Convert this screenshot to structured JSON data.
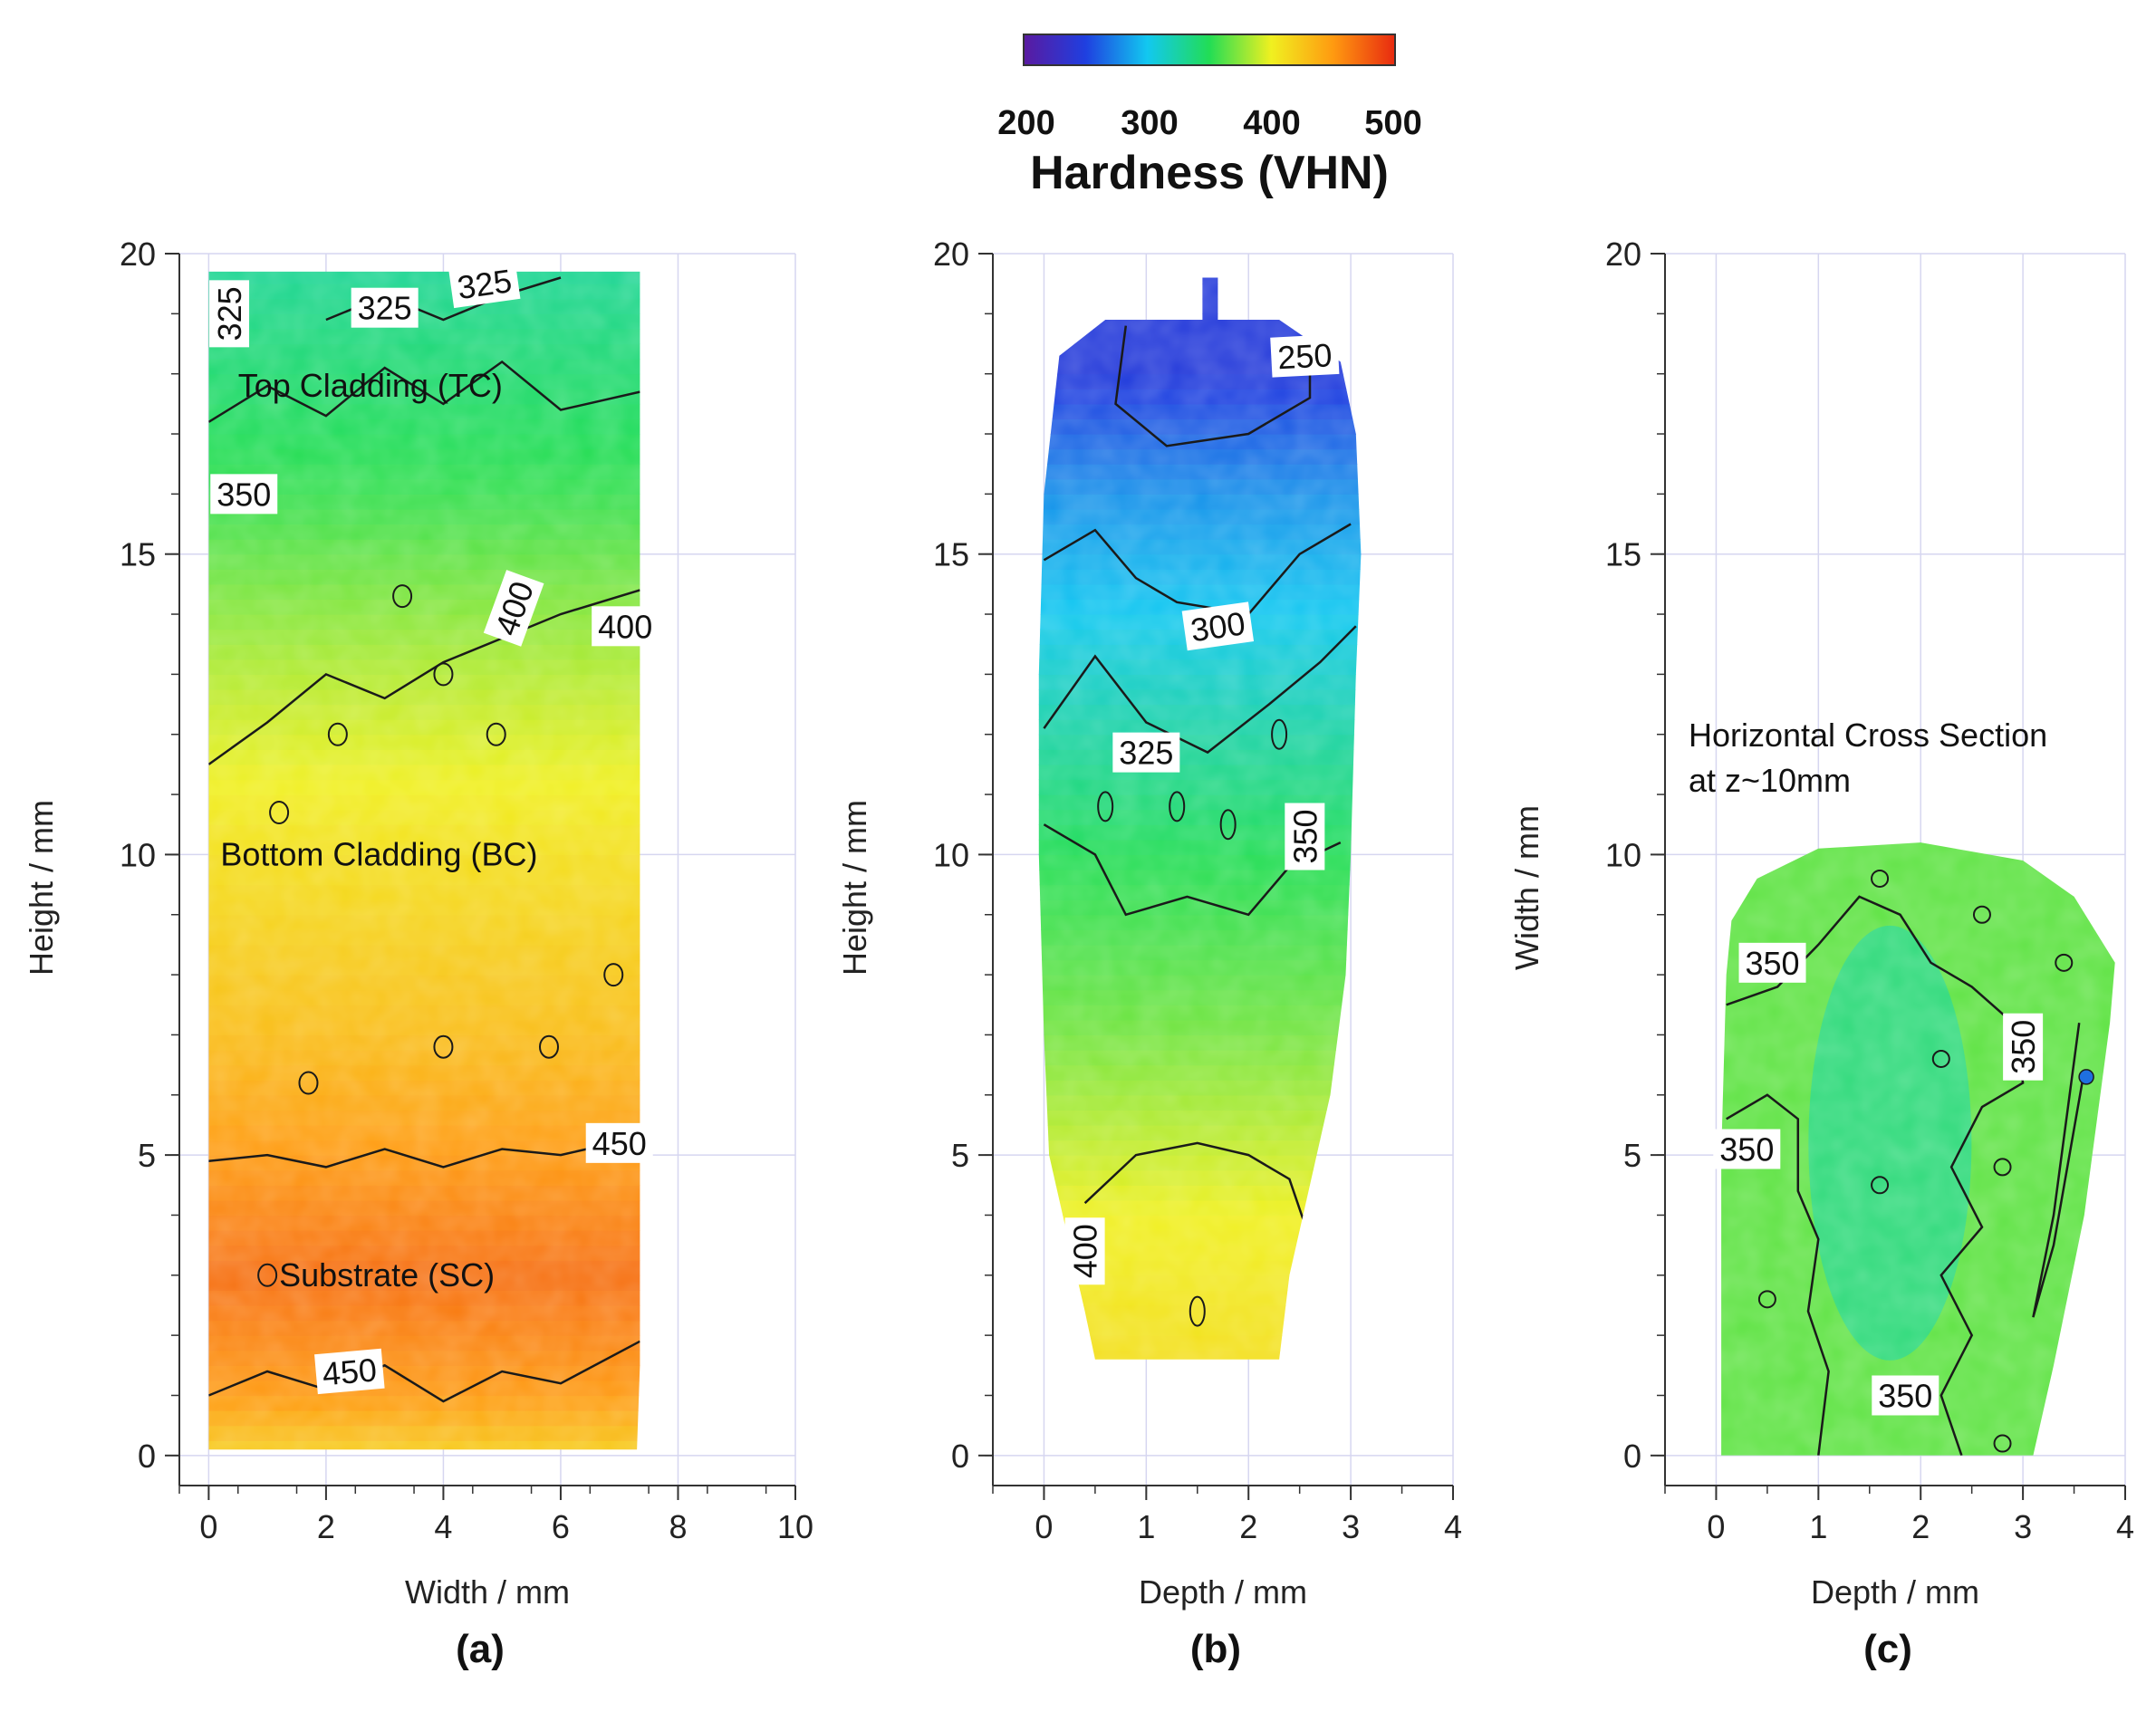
{
  "colorbar": {
    "title": "Hardness (VHN)",
    "ticks": [
      "200",
      "300",
      "400",
      "500"
    ],
    "range": [
      200,
      500
    ],
    "colors": [
      "#5a1aa0",
      "#1f3fe0",
      "#12c8f0",
      "#22dd55",
      "#f0f020",
      "#ff9a10",
      "#e82a10"
    ]
  },
  "chart_data": [
    {
      "type": "heatmap",
      "panel": "(a)",
      "xlabel": "Width / mm",
      "ylabel": "Height / mm",
      "xlim": [
        -0.5,
        10
      ],
      "ylim": [
        -0.5,
        20
      ],
      "xticks": [
        "0",
        "2",
        "4",
        "6",
        "8",
        "10"
      ],
      "yticks": [
        "0",
        "5",
        "10",
        "15",
        "20"
      ],
      "grid": true,
      "region_labels": [
        "Top Cladding (TC)",
        "Bottom Cladding (BC)",
        "Substrate (SC)"
      ],
      "contour_labels": [
        "325",
        "325",
        "325",
        "350",
        "400",
        "400",
        "450",
        "450"
      ],
      "hardness_profile": [
        {
          "height": 0,
          "vhn": 420
        },
        {
          "height": 1,
          "vhn": 450
        },
        {
          "height": 3,
          "vhn": 470
        },
        {
          "height": 5,
          "vhn": 450
        },
        {
          "height": 7,
          "vhn": 430
        },
        {
          "height": 10,
          "vhn": 410
        },
        {
          "height": 13,
          "vhn": 385
        },
        {
          "height": 16,
          "vhn": 355
        },
        {
          "height": 19.7,
          "vhn": 330
        }
      ]
    },
    {
      "type": "heatmap",
      "panel": "(b)",
      "xlabel": "Depth / mm",
      "ylabel": "Height / mm",
      "xlim": [
        -0.5,
        4
      ],
      "ylim": [
        -0.5,
        20
      ],
      "xticks": [
        "0",
        "1",
        "2",
        "3",
        "4"
      ],
      "yticks": [
        "0",
        "5",
        "10",
        "15",
        "20"
      ],
      "grid": true,
      "contour_labels": [
        "250",
        "300",
        "325",
        "350",
        "400"
      ],
      "hardness_profile": [
        {
          "height": 1.6,
          "vhn": 410
        },
        {
          "height": 4,
          "vhn": 400
        },
        {
          "height": 7,
          "vhn": 370
        },
        {
          "height": 10,
          "vhn": 350
        },
        {
          "height": 12,
          "vhn": 325
        },
        {
          "height": 14,
          "vhn": 300
        },
        {
          "height": 16,
          "vhn": 280
        },
        {
          "height": 18,
          "vhn": 245
        }
      ]
    },
    {
      "type": "heatmap",
      "panel": "(c)",
      "xlabel": "Depth / mm",
      "ylabel": "Width / mm",
      "xlim": [
        -0.5,
        4
      ],
      "ylim": [
        -0.5,
        20
      ],
      "xticks": [
        "0",
        "1",
        "2",
        "3",
        "4"
      ],
      "yticks": [
        "0",
        "5",
        "10",
        "15",
        "20"
      ],
      "grid": true,
      "annotation": [
        "Horizontal Cross Section",
        "at z~10mm"
      ],
      "contour_labels": [
        "350",
        "350",
        "350",
        "350"
      ],
      "hardness_mean": 350
    }
  ]
}
